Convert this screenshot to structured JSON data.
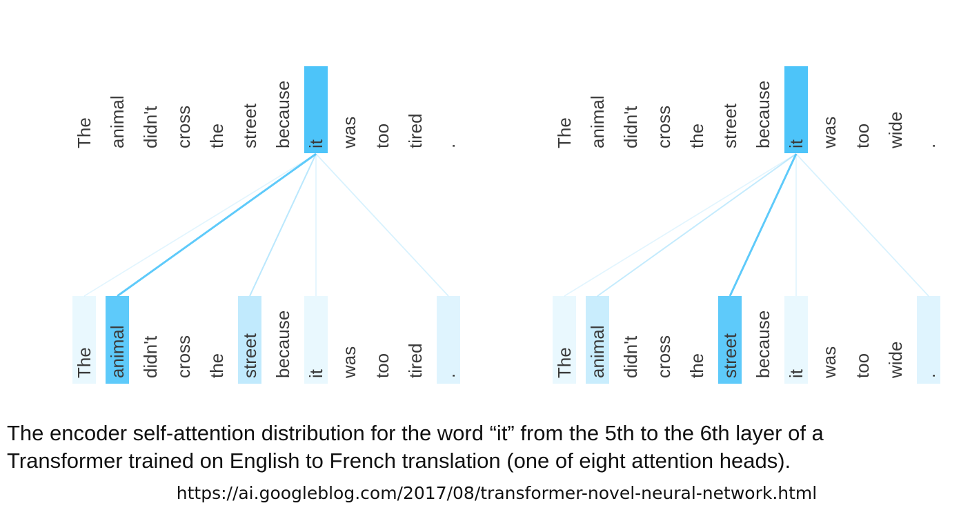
{
  "panels": [
    {
      "name": "tired",
      "tokens": [
        "The",
        "animal",
        "didn't",
        "cross",
        "the",
        "street",
        "because",
        "it",
        "was",
        "too",
        "tired",
        "."
      ],
      "query_index": 7,
      "bottom_weights": [
        0.12,
        0.9,
        0,
        0,
        0,
        0.35,
        0,
        0.12,
        0,
        0,
        0,
        0.18
      ]
    },
    {
      "name": "wide",
      "tokens": [
        "The",
        "animal",
        "didn't",
        "cross",
        "the",
        "street",
        "because",
        "it",
        "was",
        "too",
        "wide",
        "."
      ],
      "query_index": 7,
      "bottom_weights": [
        0.12,
        0.3,
        0,
        0,
        0,
        0.9,
        0,
        0.12,
        0,
        0,
        0,
        0.18
      ]
    }
  ],
  "colors": {
    "highlight": "#4dc4f9",
    "word": "#3a3a3a"
  },
  "caption": {
    "line1": "The encoder self-attention distribution for the word “it” from the 5th to the 6th layer of a",
    "line2": "Transformer trained on English to French translation (one of eight attention heads)."
  },
  "source_url": "https://ai.googleblog.com/2017/08/transformer-novel-neural-network.html"
}
